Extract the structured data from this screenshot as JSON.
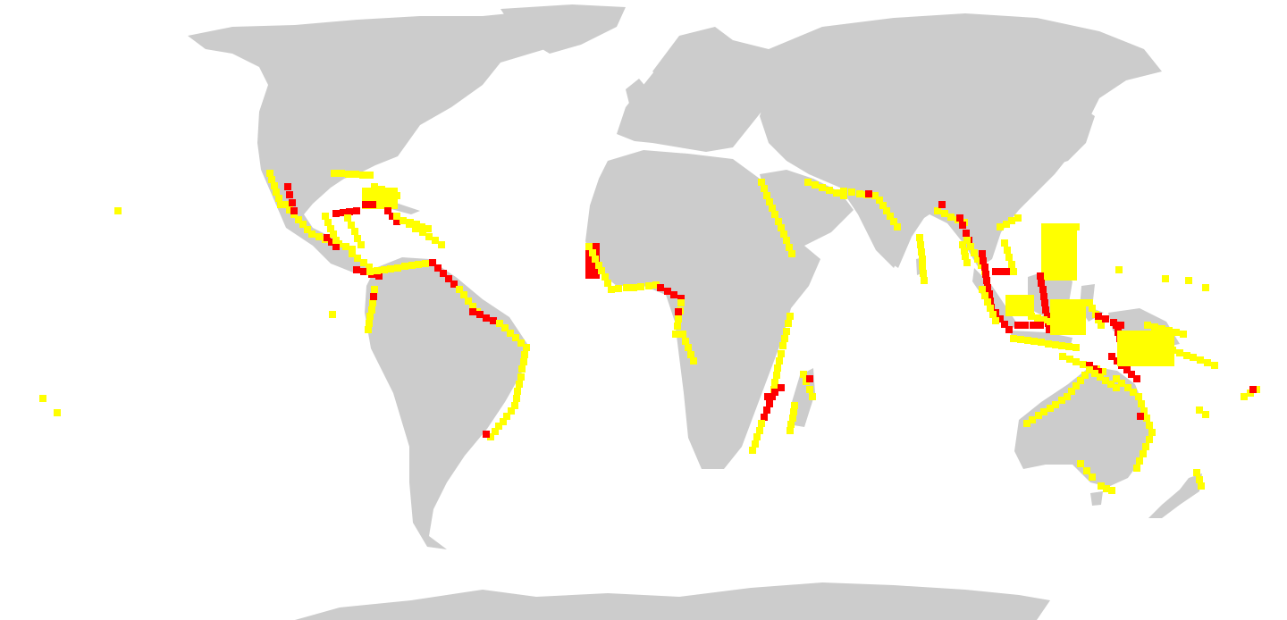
{
  "map": {
    "projection": "equirectangular-like",
    "colors": {
      "background": "#ffffff",
      "land": "#cccccc",
      "low": "#ffff00",
      "high": "#ff0000"
    },
    "legend": []
  }
}
